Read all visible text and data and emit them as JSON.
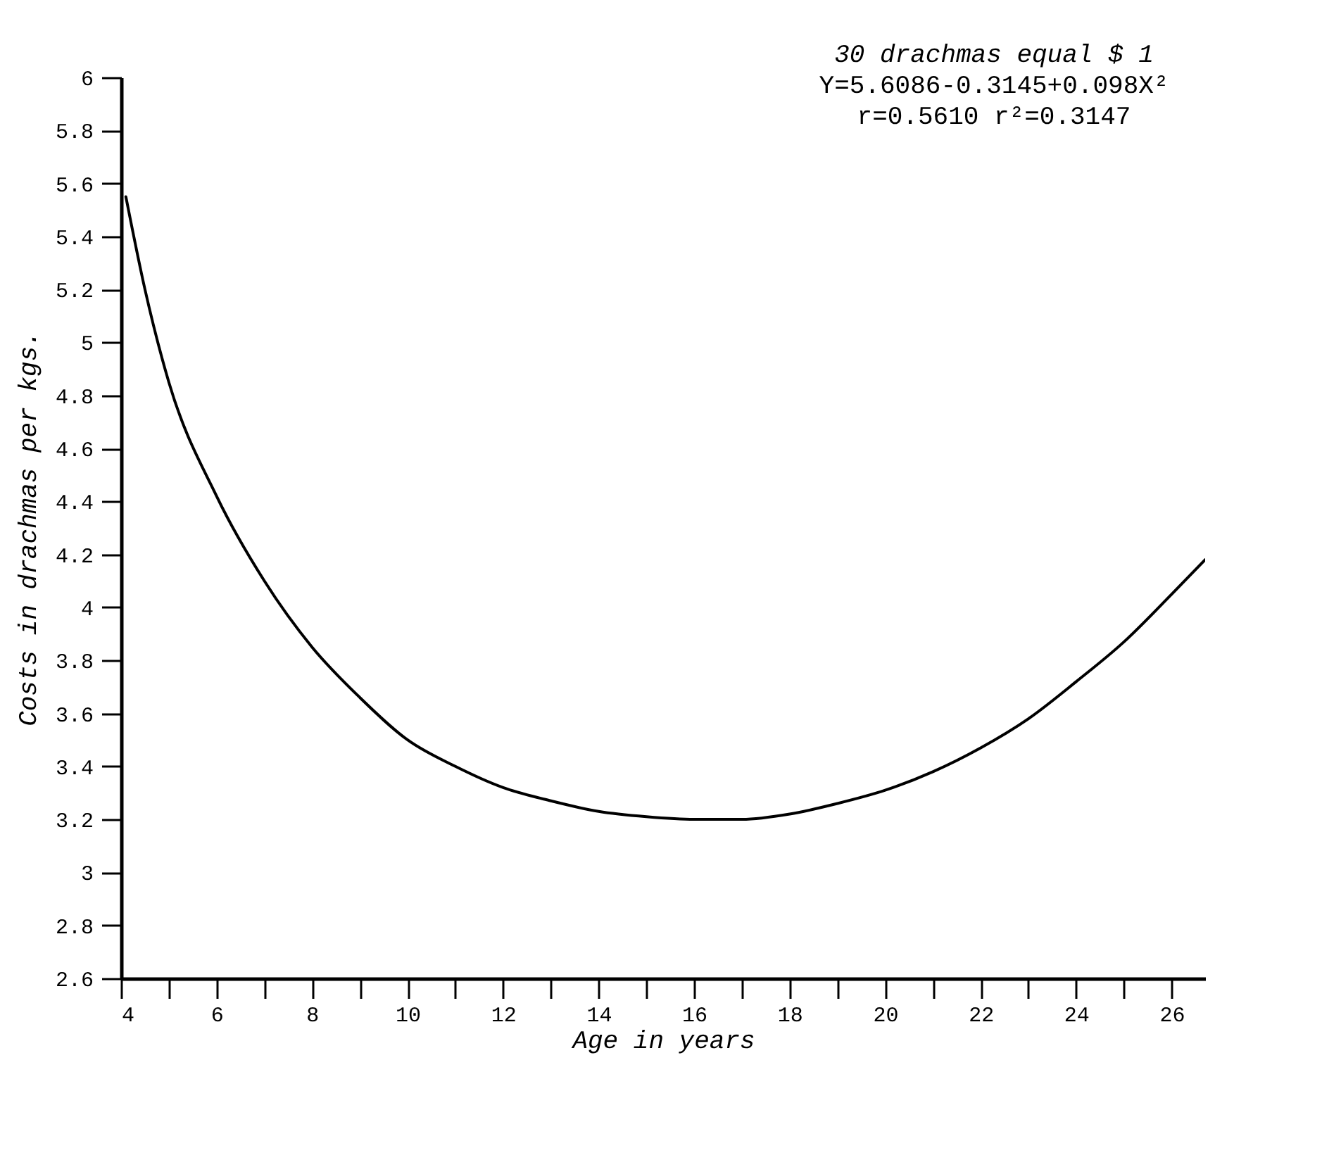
{
  "chart_data": {
    "type": "line",
    "xlabel": "Age in years",
    "ylabel": "Costs in drachmas per kgs.",
    "annotations": [
      "30 drachmas equal $ 1",
      "Y=5.6086-0.3145+0.098X²",
      "r=0.5610  r²=0.3147"
    ],
    "x": [
      4.1,
      4.5,
      5,
      6,
      7,
      8,
      9,
      10,
      11,
      12,
      13,
      14,
      15,
      16,
      17,
      18,
      19,
      20,
      21,
      22,
      23,
      24,
      25,
      26,
      26.7
    ],
    "series": [
      {
        "color": "#000000",
        "values": [
          5.55,
          5.2,
          4.85,
          4.42,
          4.1,
          3.85,
          3.66,
          3.5,
          3.4,
          3.32,
          3.27,
          3.23,
          3.21,
          3.2,
          3.2,
          3.22,
          3.26,
          3.31,
          3.38,
          3.47,
          3.58,
          3.72,
          3.87,
          4.05,
          4.18
        ]
      }
    ],
    "xlim": [
      4,
      26.7
    ],
    "ylim": [
      2.6,
      6
    ],
    "xticks": [
      4,
      {
        "value": 5,
        "label": null
      },
      6,
      {
        "value": 7,
        "label": null
      },
      8,
      {
        "value": 9,
        "label": null
      },
      10,
      {
        "value": 11,
        "label": null
      },
      12,
      {
        "value": 13,
        "label": null
      },
      14,
      {
        "value": 15,
        "label": null
      },
      16,
      {
        "value": 17,
        "label": null
      },
      18,
      {
        "value": 19,
        "label": null
      },
      20,
      {
        "value": 21,
        "label": null
      },
      22,
      {
        "value": 23,
        "label": null
      },
      24,
      {
        "value": 25,
        "label": null
      },
      26
    ],
    "yticks": [
      2.6,
      2.8,
      3,
      3.2,
      3.4,
      3.6,
      3.8,
      4,
      4.2,
      4.4,
      4.6,
      4.8,
      5,
      5.2,
      5.4,
      5.6,
      5.8,
      6
    ],
    "grid": false,
    "marker": "none",
    "line_style": "solid"
  }
}
